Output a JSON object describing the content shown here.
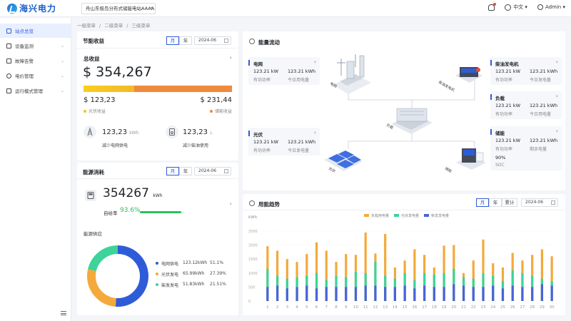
{
  "app": {
    "logo_text": "海兴电力",
    "station": "舟山东极岛分布式储能电站AAAA",
    "lang": "中文",
    "user": "Admin"
  },
  "sidebar": {
    "items": [
      {
        "label": "站点总览",
        "active": true
      },
      {
        "label": "设备监测"
      },
      {
        "label": "故障告警"
      },
      {
        "label": "电价管理"
      },
      {
        "label": "运行模式管理"
      }
    ]
  },
  "breadcrumb": [
    "一级菜单",
    "/",
    "二级菜单",
    "/",
    "三级菜单"
  ],
  "revenue": {
    "title": "节能收益",
    "tab_month": "月",
    "tab_year": "年",
    "date": "2024-06",
    "total_label": "总收益",
    "total_value": "$ 354,267",
    "pv_value": "$ 123,23",
    "pv_label": "光伏收益",
    "storage_value": "$ 231,44",
    "storage_label": "储能收益",
    "grid_value": "123,23",
    "grid_unit": "kWh",
    "grid_label": "减少电网供电",
    "diesel_value": "123,23",
    "diesel_unit": "L",
    "diesel_label": "减少柴油使用",
    "pv_share": 0.34
  },
  "consumption": {
    "title": "能源消耗",
    "tab_month": "月",
    "tab_year": "年",
    "date": "2024-06",
    "value": "354267",
    "unit": "kWh",
    "self_label": "自给率",
    "self_rate": "93.6%",
    "self_rate_num": 93.6,
    "supply_title": "能源供应",
    "legend": [
      {
        "name": "电网供电",
        "value": "123.12kWh",
        "pct": "51.1%",
        "pct_num": 51.1,
        "color": "#2e5cd9"
      },
      {
        "name": "光伏发电",
        "value": "65.99kWh",
        "pct": "27.39%",
        "pct_num": 27.39,
        "color": "#f4a93b"
      },
      {
        "name": "柴发发电",
        "value": "51.83kWh",
        "pct": "21.51%",
        "pct_num": 21.51,
        "color": "#3dd39a"
      }
    ]
  },
  "flow": {
    "title": "能量流动",
    "grid": {
      "title": "电网",
      "v1": "123.21 kW",
      "v2": "123.21 kWh",
      "l1": "有功功率",
      "l2": "今日用电量",
      "img_label": "电网"
    },
    "pv": {
      "title": "光伏",
      "v1": "123.21 kW",
      "v2": "123.21 kWh",
      "l1": "有功功率",
      "l2": "今日发电量",
      "img_label": "光伏"
    },
    "diesel": {
      "title": "柴油发电机",
      "v1": "123.21 kW",
      "v2": "123.21 kWh",
      "l1": "有功功率",
      "l2": "今日发电量",
      "img_label": "柴油发电机"
    },
    "load": {
      "title": "负载",
      "v1": "123.21 kW",
      "v2": "123.21 kWh",
      "l1": "有功功率",
      "l2": "今日用电量"
    },
    "storage": {
      "title": "储能",
      "v1": "123.21 kW",
      "v2": "123.21 kWh",
      "l1": "有功功率",
      "l2": "剩余电量",
      "v3": "90%",
      "l3": "SOC",
      "img_label": "储能"
    },
    "center_label": "负载"
  },
  "trend": {
    "title": "用能趋势",
    "tab_month": "月",
    "tab_year": "年",
    "tab_total": "累计",
    "date": "2024-06"
  },
  "chart_data": {
    "type": "bar",
    "ylabel": "kWh",
    "ylim": [
      0,
      2500
    ],
    "yticks": [
      "2500",
      "2000",
      "1500",
      "1000",
      "500",
      "0"
    ],
    "categories": [
      "1",
      "2",
      "3",
      "4",
      "5",
      "6",
      "7",
      "8",
      "9",
      "10",
      "11",
      "12",
      "13",
      "14",
      "15",
      "16",
      "17",
      "18",
      "19",
      "20",
      "21",
      "22",
      "23",
      "24",
      "25",
      "26",
      "27",
      "28",
      "29",
      "30"
    ],
    "series": [
      {
        "name": "负载用电量",
        "color": "#f4a93b",
        "values": [
          1960,
          1800,
          1500,
          1400,
          1680,
          2100,
          1800,
          1400,
          1680,
          1650,
          2450,
          1700,
          2400,
          1200,
          1450,
          1850,
          1650,
          1200,
          1980,
          2000,
          1000,
          1450,
          2200,
          1350,
          1200,
          1720,
          1450,
          1650,
          1850,
          1600
        ]
      },
      {
        "name": "光伏发电量",
        "color": "#3dd39a",
        "values": [
          1150,
          900,
          800,
          850,
          900,
          1000,
          750,
          900,
          850,
          1050,
          1000,
          1400,
          900,
          800,
          1000,
          750,
          1000,
          950,
          1000,
          1150,
          850,
          800,
          1000,
          900,
          700,
          1100,
          1000,
          900,
          800,
          700
        ]
      },
      {
        "name": "柴发发电量",
        "color": "#4a63d9",
        "values": [
          500,
          550,
          450,
          500,
          550,
          450,
          500,
          500,
          500,
          500,
          550,
          550,
          500,
          500,
          550,
          450,
          550,
          500,
          500,
          600,
          550,
          500,
          500,
          550,
          450,
          550,
          500,
          500,
          600,
          550
        ]
      }
    ],
    "legend_position": "top-right",
    "grid": true
  }
}
